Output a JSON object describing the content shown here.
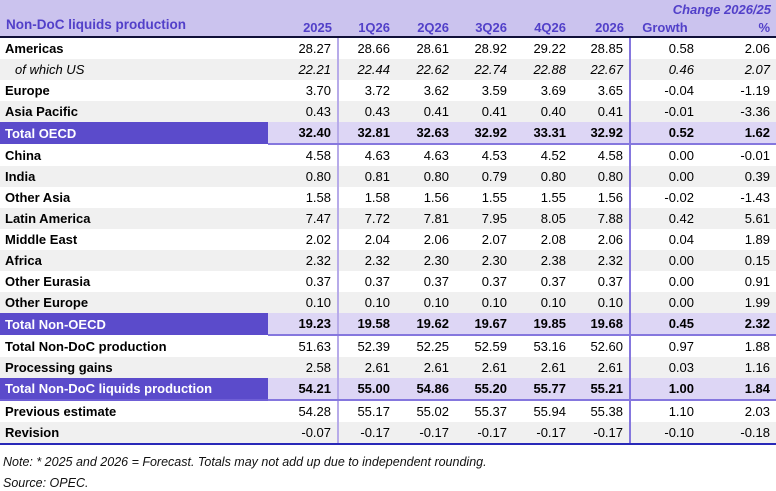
{
  "colors": {
    "accent_purple": "#5b4bcb",
    "header_lavender": "#cbc3ee",
    "total_lavender": "#ddd6f5",
    "zebra_gray": "#f0f0f0",
    "header_text": "#5240c9",
    "line_dark": "#101038",
    "line_bottom_blue": "#2929b8",
    "line_light_purple": "#b7abe9",
    "line_mid_purple": "#8577de"
  },
  "table": {
    "title": "Non-DoC liquids production",
    "change_header": "Change 2026/25",
    "columns": [
      "2025",
      "1Q26",
      "2Q26",
      "3Q26",
      "4Q26",
      "2026",
      "Growth",
      "%"
    ],
    "rows": [
      {
        "label": "Americas",
        "style": "normal",
        "zebra": false,
        "values": [
          "28.27",
          "28.66",
          "28.61",
          "28.92",
          "29.22",
          "28.85",
          "0.58",
          "2.06"
        ]
      },
      {
        "label": "of which US",
        "style": "sub",
        "zebra": true,
        "values": [
          "22.21",
          "22.44",
          "22.62",
          "22.74",
          "22.88",
          "22.67",
          "0.46",
          "2.07"
        ]
      },
      {
        "label": "Europe",
        "style": "normal",
        "zebra": false,
        "values": [
          "3.70",
          "3.72",
          "3.62",
          "3.59",
          "3.69",
          "3.65",
          "-0.04",
          "-1.19"
        ]
      },
      {
        "label": "Asia Pacific",
        "style": "normal",
        "zebra": true,
        "values": [
          "0.43",
          "0.43",
          "0.41",
          "0.41",
          "0.40",
          "0.41",
          "-0.01",
          "-3.36"
        ]
      },
      {
        "label": "Total OECD",
        "style": "total",
        "zebra": false,
        "values": [
          "32.40",
          "32.81",
          "32.63",
          "32.92",
          "33.31",
          "32.92",
          "0.52",
          "1.62"
        ]
      },
      {
        "label": "China",
        "style": "normal",
        "zebra": false,
        "values": [
          "4.58",
          "4.63",
          "4.63",
          "4.53",
          "4.52",
          "4.58",
          "0.00",
          "-0.01"
        ]
      },
      {
        "label": "India",
        "style": "normal",
        "zebra": true,
        "values": [
          "0.80",
          "0.81",
          "0.80",
          "0.79",
          "0.80",
          "0.80",
          "0.00",
          "0.39"
        ]
      },
      {
        "label": "Other Asia",
        "style": "normal",
        "zebra": false,
        "values": [
          "1.58",
          "1.58",
          "1.56",
          "1.55",
          "1.55",
          "1.56",
          "-0.02",
          "-1.43"
        ]
      },
      {
        "label": "Latin America",
        "style": "normal",
        "zebra": true,
        "values": [
          "7.47",
          "7.72",
          "7.81",
          "7.95",
          "8.05",
          "7.88",
          "0.42",
          "5.61"
        ]
      },
      {
        "label": "Middle East",
        "style": "normal",
        "zebra": false,
        "values": [
          "2.02",
          "2.04",
          "2.06",
          "2.07",
          "2.08",
          "2.06",
          "0.04",
          "1.89"
        ]
      },
      {
        "label": "Africa",
        "style": "normal",
        "zebra": true,
        "values": [
          "2.32",
          "2.32",
          "2.30",
          "2.30",
          "2.38",
          "2.32",
          "0.00",
          "0.15"
        ]
      },
      {
        "label": "Other Eurasia",
        "style": "normal",
        "zebra": false,
        "values": [
          "0.37",
          "0.37",
          "0.37",
          "0.37",
          "0.37",
          "0.37",
          "0.00",
          "0.91"
        ]
      },
      {
        "label": "Other Europe",
        "style": "normal",
        "zebra": true,
        "values": [
          "0.10",
          "0.10",
          "0.10",
          "0.10",
          "0.10",
          "0.10",
          "0.00",
          "1.99"
        ]
      },
      {
        "label": "Total Non-OECD",
        "style": "total",
        "zebra": false,
        "values": [
          "19.23",
          "19.58",
          "19.62",
          "19.67",
          "19.85",
          "19.68",
          "0.45",
          "2.32"
        ]
      },
      {
        "label": "Total Non-DoC production",
        "style": "normal",
        "zebra": false,
        "values": [
          "51.63",
          "52.39",
          "52.25",
          "52.59",
          "53.16",
          "52.60",
          "0.97",
          "1.88"
        ]
      },
      {
        "label": "Processing gains",
        "style": "normal",
        "zebra": true,
        "values": [
          "2.58",
          "2.61",
          "2.61",
          "2.61",
          "2.61",
          "2.61",
          "0.03",
          "1.16"
        ]
      },
      {
        "label": "Total Non-DoC liquids production",
        "style": "total",
        "grand": true,
        "zebra": false,
        "values": [
          "54.21",
          "55.00",
          "54.86",
          "55.20",
          "55.77",
          "55.21",
          "1.00",
          "1.84"
        ]
      },
      {
        "label": "Previous estimate",
        "style": "normal",
        "zebra": false,
        "values": [
          "54.28",
          "55.17",
          "55.02",
          "55.37",
          "55.94",
          "55.38",
          "1.10",
          "2.03"
        ]
      },
      {
        "label": "Revision",
        "style": "normal",
        "zebra": true,
        "values": [
          "-0.07",
          "-0.17",
          "-0.17",
          "-0.17",
          "-0.17",
          "-0.17",
          "-0.10",
          "-0.18"
        ]
      }
    ]
  },
  "footer": {
    "note": "Note: * 2025 and 2026 = Forecast. Totals may not add up due to independent rounding.",
    "source": "Source: OPEC."
  }
}
